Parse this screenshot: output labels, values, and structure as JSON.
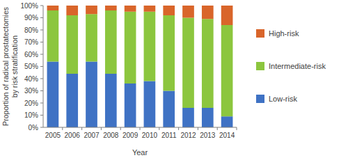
{
  "chart_data": {
    "type": "bar",
    "stacked": true,
    "x_label": "Year",
    "y_label": "Proportion of radical prostatectomies by risk stratification",
    "categories": [
      "2005",
      "2006",
      "2007",
      "2008",
      "2009",
      "2010",
      "2011",
      "2012",
      "2013",
      "2014"
    ],
    "series": [
      {
        "name": "Low-risk",
        "color": "#3f72c4",
        "values": [
          54,
          44,
          54,
          44,
          36,
          38,
          30,
          16,
          16,
          9
        ]
      },
      {
        "name": "Intermediate-risk",
        "color": "#8cc63e",
        "values": [
          42,
          48,
          39,
          52,
          59,
          57,
          62,
          74,
          73,
          75
        ]
      },
      {
        "name": "High-risk",
        "color": "#d9652a",
        "values": [
          4,
          8,
          7,
          4,
          5,
          5,
          8,
          10,
          11,
          16
        ]
      }
    ],
    "ylim": [
      0,
      100
    ],
    "yticks": [
      {
        "value": 0,
        "label": "0%"
      },
      {
        "value": 10,
        "label": "10%"
      },
      {
        "value": 20,
        "label": "20%"
      },
      {
        "value": 30,
        "label": "30%"
      },
      {
        "value": 40,
        "label": "40%"
      },
      {
        "value": 50,
        "label": "50%"
      },
      {
        "value": 60,
        "label": "60%"
      },
      {
        "value": 70,
        "label": "70%"
      },
      {
        "value": 80,
        "label": "80%"
      },
      {
        "value": 90,
        "label": "90%"
      },
      {
        "value": 100,
        "label": "100%"
      }
    ],
    "grid": false,
    "legend": "right"
  }
}
